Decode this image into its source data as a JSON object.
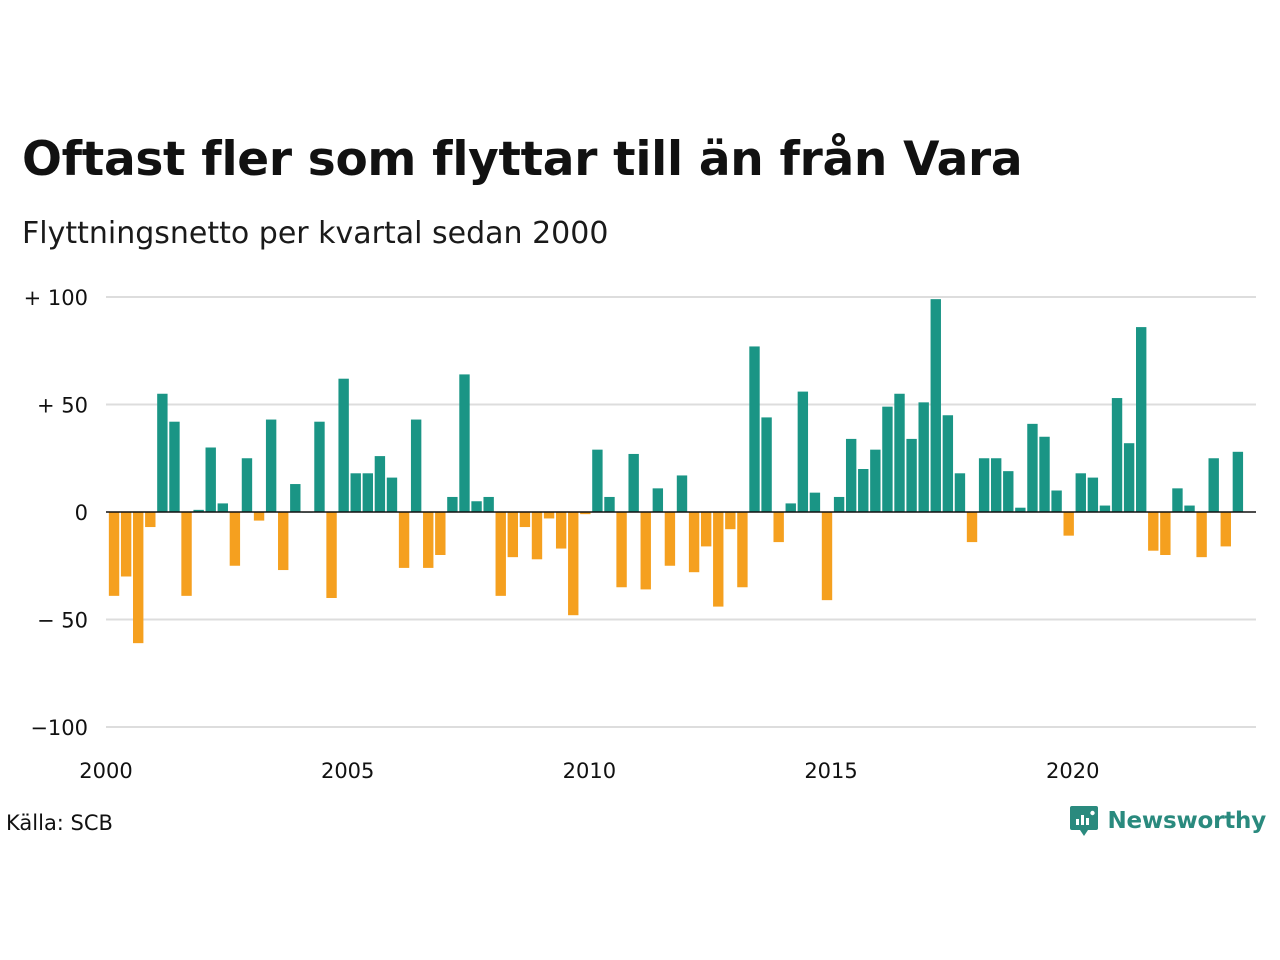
{
  "title": "Oftast fler som flyttar till än från Vara",
  "subtitle": "Flyttningsnetto per kvartal sedan 2000",
  "source": "Källa: SCB",
  "brand": {
    "name": "Newsworthy",
    "icon": "newsworthy-logo-icon"
  },
  "colors": {
    "positive": "#1a9585",
    "negative": "#f5a01f",
    "grid": "#dddddd",
    "zero_line": "#111111"
  },
  "chart_data": {
    "type": "bar",
    "title": "Oftast fler som flyttar till än från Vara",
    "subtitle": "Flyttningsnetto per kvartal sedan 2000",
    "x_start": 2000.0,
    "x_step": 0.25,
    "xlim": [
      2000,
      2023.75
    ],
    "x_ticks": [
      2000,
      2005,
      2010,
      2015,
      2020
    ],
    "x_tick_labels": [
      "2000",
      "2005",
      "2010",
      "2015",
      "2020"
    ],
    "ylim": [
      -100,
      100
    ],
    "y_ticks": [
      100,
      50,
      0,
      -50,
      -100
    ],
    "y_tick_labels": [
      "+ 100",
      "+  50",
      "0",
      "− 50",
      "−100"
    ],
    "grid": true,
    "values": [
      -39,
      -30,
      -61,
      -7,
      55,
      42,
      -39,
      1,
      30,
      4,
      -25,
      25,
      -4,
      43,
      -27,
      13,
      0,
      42,
      -40,
      62,
      18,
      18,
      26,
      16,
      -26,
      43,
      -26,
      -20,
      7,
      64,
      5,
      7,
      -39,
      -21,
      -7,
      -22,
      -3,
      -17,
      -48,
      -1,
      29,
      7,
      -35,
      27,
      -36,
      11,
      -25,
      17,
      -28,
      -16,
      -44,
      -8,
      -35,
      77,
      44,
      -14,
      4,
      56,
      9,
      -41,
      7,
      34,
      20,
      29,
      49,
      55,
      34,
      51,
      99,
      45,
      18,
      -14,
      25,
      25,
      19,
      2,
      41,
      35,
      10,
      -11,
      18,
      16,
      3,
      53,
      32,
      86,
      -18,
      -20,
      11,
      3,
      -21,
      25,
      -16,
      28
    ]
  }
}
